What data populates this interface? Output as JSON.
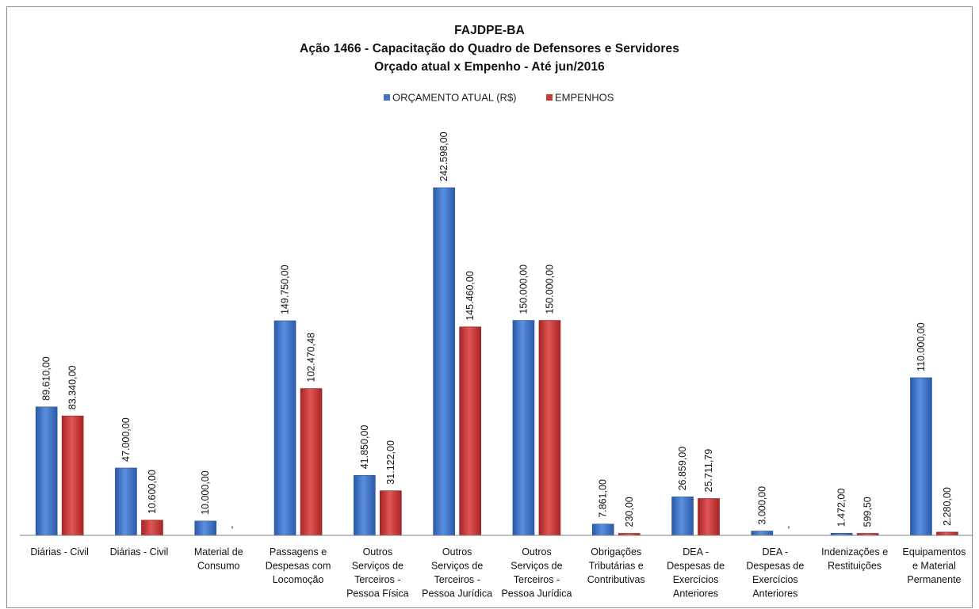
{
  "chart_data": {
    "type": "bar",
    "title": [
      "FAJDPE-BA",
      "Ação 1466 - Capacitação do Quadro de Defensores e Servidores",
      "Orçado atual x Empenho - Até jun/2016"
    ],
    "categories": [
      [
        "Diárias - Civil"
      ],
      [
        "Diárias - Civil"
      ],
      [
        "Material de",
        "Consumo"
      ],
      [
        "Passagens e",
        "Despesas com",
        "Locomoção"
      ],
      [
        "Outros",
        "Serviços de",
        "Terceiros -",
        "Pessoa Física"
      ],
      [
        "Outros",
        "Serviços de",
        "Terceiros -",
        "Pessoa Jurídica"
      ],
      [
        "Outros",
        "Serviços de",
        "Terceiros -",
        "Pessoa Jurídica"
      ],
      [
        "Obrigações",
        "Tributárias e",
        "Contributivas"
      ],
      [
        "DEA -",
        "Despesas de",
        "Exercícios",
        "Anteriores"
      ],
      [
        "DEA -",
        "Despesas de",
        "Exercícios",
        "Anteriores"
      ],
      [
        "Indenizações e",
        "Restituições"
      ],
      [
        "Equipamentos",
        "e Material",
        "Permanente"
      ]
    ],
    "series": [
      {
        "name": "ORÇAMENTO ATUAL (R$)",
        "color": "#3f74c9",
        "values": [
          89610,
          47000,
          10000,
          149750,
          41850,
          242598,
          150000,
          7861,
          26859,
          3000,
          1472,
          110000
        ],
        "labels": [
          "89.610,00",
          "47.000,00",
          "10.000,00",
          "149.750,00",
          "41.850,00",
          "242.598,00",
          "150.000,00",
          "7.861,00",
          "26.859,00",
          "3.000,00",
          "1.472,00",
          "110.000,00"
        ]
      },
      {
        "name": "EMPENHOS",
        "color": "#c93a3a",
        "values": [
          83340,
          10600,
          0,
          102470.48,
          31122,
          145460,
          150000,
          230,
          25711.79,
          0,
          599.5,
          2280
        ],
        "labels": [
          "83.340,00",
          "10.600,00",
          "-",
          "102.470,48",
          "31.122,00",
          "145.460,00",
          "150.000,00",
          "230,00",
          "25.711,79",
          "-",
          "599,50",
          "2.280,00"
        ]
      }
    ],
    "ylim": [
      0,
      260000
    ],
    "legend_position": "top-center",
    "grid": false
  }
}
